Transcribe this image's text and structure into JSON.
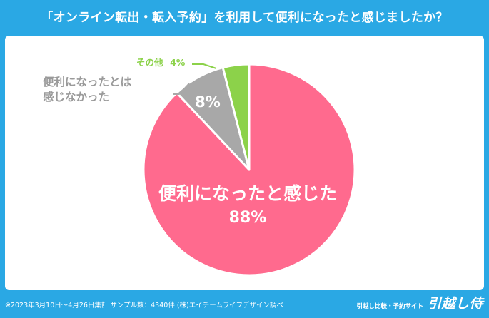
{
  "title": "「オンライン転出・転入予約」を利用して便利になったと感じましたか？",
  "chart_data": {
    "type": "pie",
    "slices": [
      {
        "label_lines": [
          "便利になったと感じた"
        ],
        "value_label": "88%",
        "value": 88,
        "color": "#ff6a8e"
      },
      {
        "label_lines": [
          "便利になったとは",
          "感じなかった"
        ],
        "value_label": "8%",
        "value": 8,
        "color": "#a8a8a8"
      },
      {
        "label_lines": [
          "その他"
        ],
        "value_label": "4%",
        "value": 4,
        "color": "#8cd24a"
      }
    ]
  },
  "footer": {
    "note": "※2023年3月10日～4月26日集計 サンプル数：4340件 (株)エイチームライフデザイン調べ",
    "brand_sub": "引越し比較・予約サイト",
    "brand_logo": "引越し侍"
  }
}
